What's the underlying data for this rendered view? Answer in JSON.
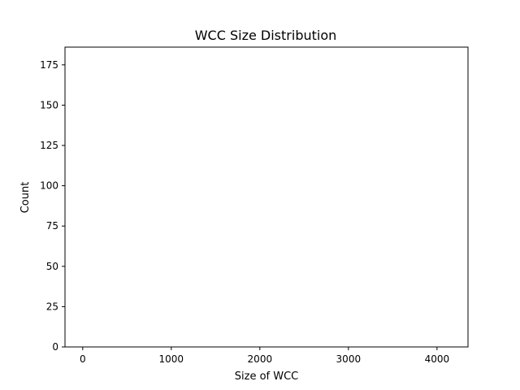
{
  "chart_data": {
    "type": "bar",
    "title": "WCC Size Distribution",
    "xlabel": "Size of WCC",
    "ylabel": "Count",
    "xlim": [
      -200,
      4350
    ],
    "ylim": [
      0,
      186
    ],
    "xticks": [
      0,
      1000,
      2000,
      3000,
      4000
    ],
    "yticks": [
      0,
      25,
      50,
      75,
      100,
      125,
      150,
      175
    ],
    "bins": [],
    "grid": false
  }
}
